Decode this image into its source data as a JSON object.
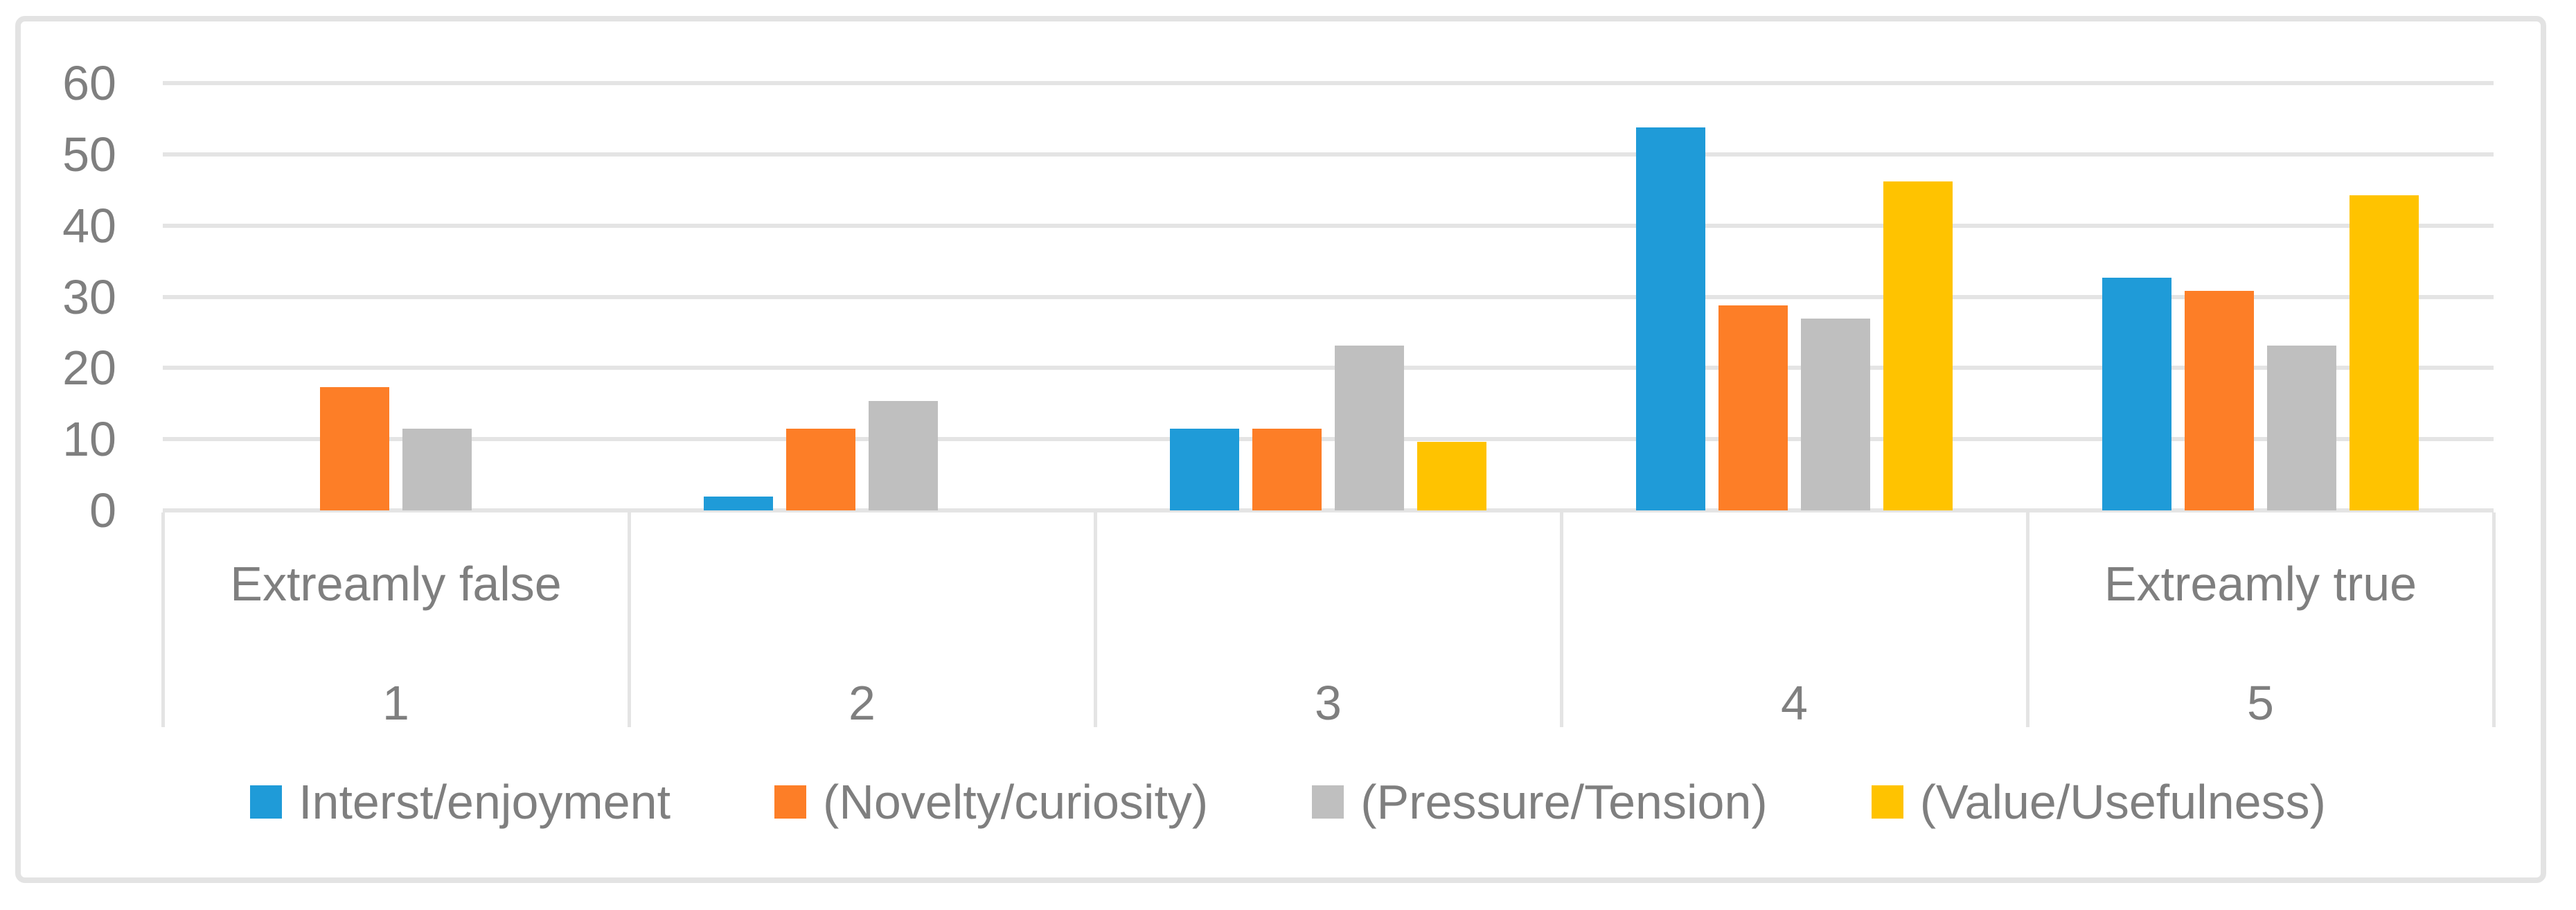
{
  "chart_data": {
    "type": "bar",
    "title": "",
    "xlabel": "",
    "ylabel": "",
    "ylim": [
      0,
      60
    ],
    "ytick_step": 10,
    "grid": true,
    "legend_position": "bottom",
    "categories": [
      "1",
      "2",
      "3",
      "4",
      "5"
    ],
    "category_top_labels": [
      "Extreamly false",
      "",
      "",
      "",
      "Extreamly true"
    ],
    "series": [
      {
        "name": "Interst/enjoyment",
        "color": "#1f9bd8",
        "values": [
          0,
          1.9,
          11.5,
          53.8,
          32.7
        ]
      },
      {
        "name": "(Novelty/curiosity)",
        "color": "#fd7e27",
        "values": [
          17.3,
          11.5,
          11.5,
          28.8,
          30.8
        ]
      },
      {
        "name": "(Pressure/Tension)",
        "color": "#bfbfbf",
        "values": [
          11.5,
          15.4,
          23.1,
          26.9,
          23.1
        ]
      },
      {
        "name": "(Value/Usefulness)",
        "color": "#ffc300",
        "values": [
          0,
          0,
          9.6,
          46.2,
          44.2
        ]
      }
    ]
  },
  "colors": {
    "gridline": "#e4e4e4",
    "frame_border": "#e3e3e3",
    "text": "#7f7f7f",
    "background": "#ffffff"
  }
}
